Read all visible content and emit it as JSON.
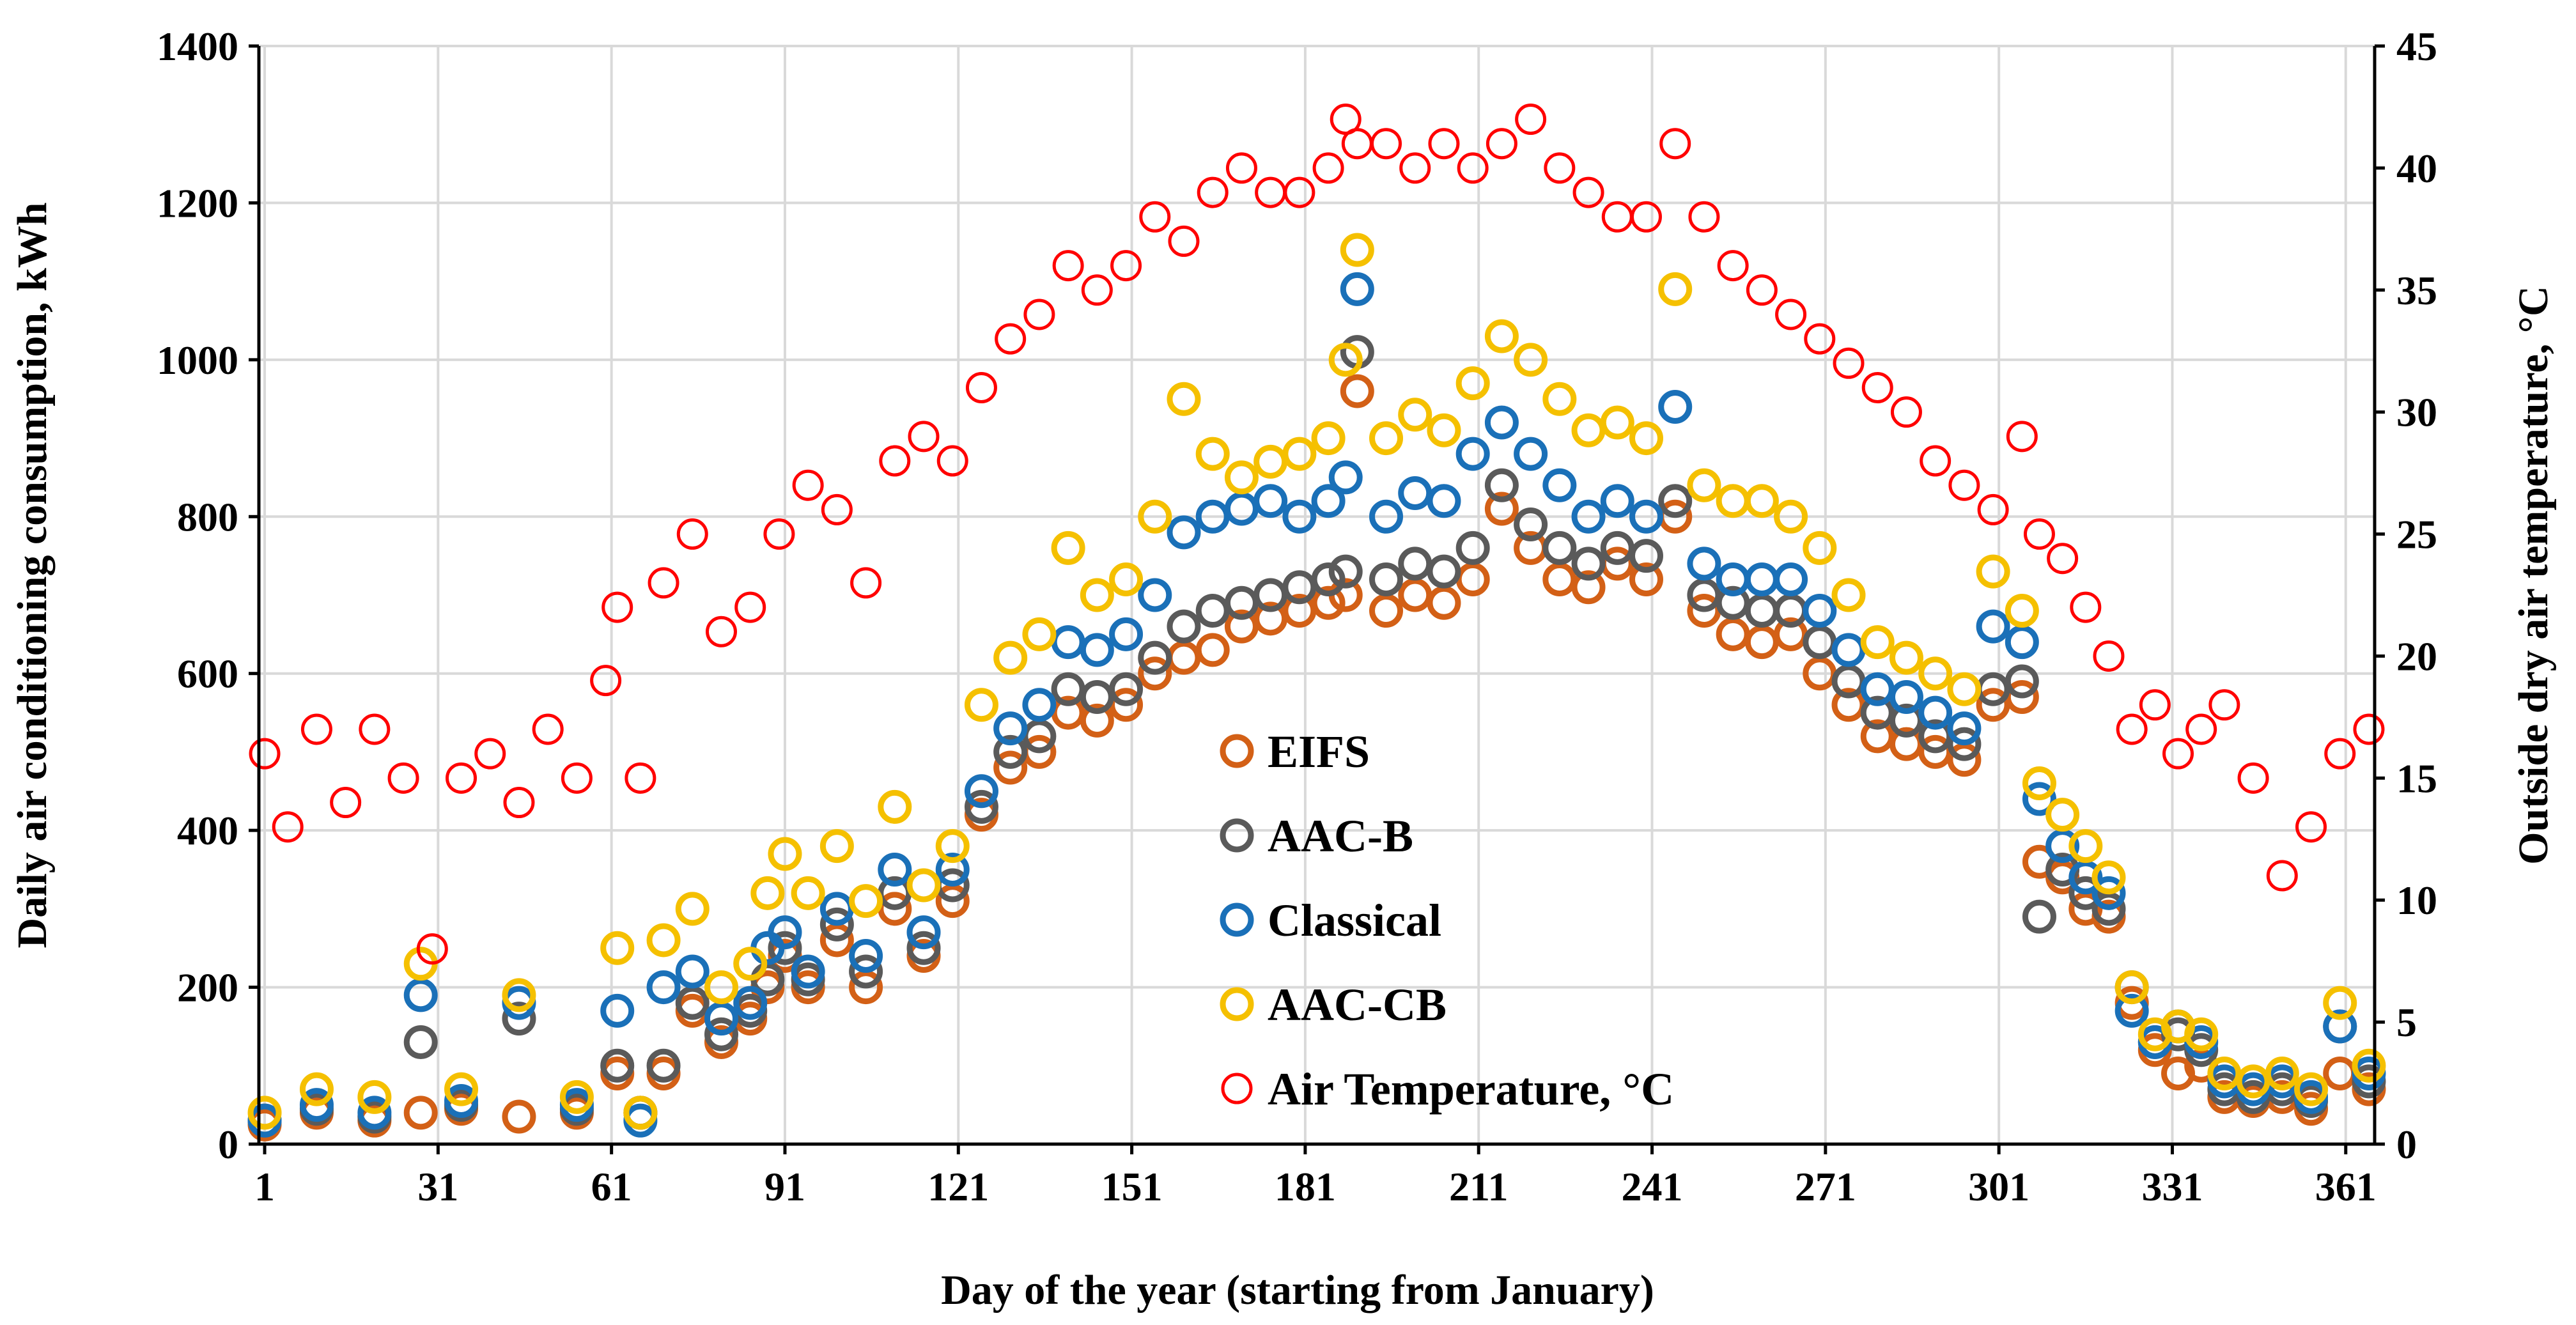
{
  "chart_data": {
    "type": "scatter",
    "title": "",
    "xlabel": "Day of the year (starting from January)",
    "ylabel": "Daily air conditioning consumption, kWh",
    "y2label": "Outside dry air temperature, °C",
    "xlim": [
      0,
      366
    ],
    "ylim": [
      0,
      1400
    ],
    "y2lim": [
      0,
      45
    ],
    "xticks": [
      1,
      31,
      61,
      91,
      121,
      151,
      181,
      211,
      241,
      271,
      301,
      331,
      361
    ],
    "yticks": [
      0,
      200,
      400,
      600,
      800,
      1000,
      1200,
      1400
    ],
    "y2ticks": [
      0,
      5,
      10,
      15,
      20,
      25,
      30,
      35,
      40,
      45
    ],
    "grid": true,
    "legend_position": "center",
    "marker": "open-circle",
    "colors": {
      "EIFS": "#d36016",
      "AAC-B": "#5a5a5a",
      "Classical": "#1a70b8",
      "AAC-CB": "#f5c000",
      "Air Temperature, °C": "#ff0000"
    },
    "series": [
      {
        "name": "EIFS",
        "axis": "left",
        "x": [
          1,
          10,
          20,
          28,
          35,
          45,
          55,
          62,
          66,
          70,
          75,
          80,
          85,
          88,
          91,
          95,
          100,
          105,
          110,
          115,
          120,
          125,
          130,
          135,
          140,
          145,
          150,
          155,
          160,
          165,
          170,
          175,
          180,
          185,
          188,
          190,
          195,
          200,
          205,
          210,
          215,
          220,
          225,
          230,
          235,
          240,
          245,
          250,
          255,
          260,
          265,
          270,
          275,
          280,
          285,
          290,
          295,
          300,
          305,
          308,
          312,
          316,
          320,
          324,
          328,
          332,
          336,
          340,
          345,
          350,
          355,
          360,
          365
        ],
        "values": [
          25,
          40,
          30,
          40,
          45,
          35,
          40,
          90,
          40,
          90,
          170,
          130,
          160,
          200,
          240,
          200,
          260,
          200,
          300,
          240,
          310,
          420,
          480,
          500,
          550,
          540,
          560,
          600,
          620,
          630,
          660,
          670,
          680,
          690,
          700,
          960,
          680,
          700,
          690,
          720,
          810,
          760,
          720,
          710,
          740,
          720,
          800,
          680,
          650,
          640,
          650,
          600,
          560,
          520,
          510,
          500,
          490,
          560,
          570,
          360,
          340,
          300,
          290,
          180,
          120,
          90,
          100,
          60,
          55,
          60,
          45,
          90,
          70
        ]
      },
      {
        "name": "AAC-B",
        "axis": "left",
        "x": [
          1,
          10,
          20,
          28,
          35,
          45,
          55,
          62,
          66,
          70,
          75,
          80,
          85,
          88,
          91,
          95,
          100,
          105,
          110,
          115,
          120,
          125,
          130,
          135,
          140,
          145,
          150,
          155,
          160,
          165,
          170,
          175,
          180,
          185,
          188,
          190,
          195,
          200,
          205,
          210,
          215,
          220,
          225,
          230,
          235,
          240,
          245,
          250,
          255,
          260,
          265,
          270,
          275,
          280,
          285,
          290,
          295,
          300,
          305,
          308,
          312,
          316,
          320,
          324,
          328,
          332,
          336,
          340,
          345,
          350,
          355,
          360,
          365
        ],
        "values": [
          30,
          45,
          35,
          130,
          50,
          160,
          45,
          100,
          40,
          100,
          180,
          140,
          170,
          210,
          250,
          210,
          280,
          220,
          320,
          250,
          330,
          430,
          500,
          520,
          580,
          570,
          580,
          620,
          660,
          680,
          690,
          700,
          710,
          720,
          730,
          1010,
          720,
          740,
          730,
          760,
          840,
          790,
          760,
          740,
          760,
          750,
          820,
          700,
          690,
          680,
          680,
          640,
          590,
          550,
          540,
          520,
          510,
          580,
          590,
          290,
          350,
          320,
          300,
          200,
          130,
          140,
          120,
          70,
          60,
          70,
          55,
          150,
          80
        ]
      },
      {
        "name": "Classical",
        "axis": "left",
        "x": [
          1,
          10,
          20,
          28,
          35,
          45,
          55,
          62,
          66,
          70,
          75,
          80,
          85,
          88,
          91,
          95,
          100,
          105,
          110,
          115,
          120,
          125,
          130,
          135,
          140,
          145,
          150,
          155,
          160,
          165,
          170,
          175,
          180,
          185,
          188,
          190,
          195,
          200,
          205,
          210,
          215,
          220,
          225,
          230,
          235,
          240,
          245,
          250,
          255,
          260,
          265,
          270,
          275,
          280,
          285,
          290,
          295,
          300,
          305,
          308,
          312,
          316,
          320,
          324,
          328,
          332,
          336,
          340,
          345,
          350,
          355,
          360,
          365
        ],
        "values": [
          30,
          50,
          40,
          190,
          55,
          180,
          50,
          170,
          30,
          200,
          220,
          160,
          180,
          250,
          270,
          220,
          300,
          240,
          350,
          270,
          350,
          450,
          530,
          560,
          640,
          630,
          650,
          700,
          780,
          800,
          810,
          820,
          800,
          820,
          850,
          1090,
          800,
          830,
          820,
          880,
          920,
          880,
          840,
          800,
          820,
          800,
          940,
          740,
          720,
          720,
          720,
          680,
          630,
          580,
          570,
          550,
          530,
          660,
          640,
          440,
          380,
          340,
          320,
          170,
          130,
          150,
          130,
          80,
          70,
          80,
          60,
          150,
          90
        ]
      },
      {
        "name": "AAC-CB",
        "axis": "left",
        "x": [
          1,
          10,
          20,
          28,
          35,
          45,
          55,
          62,
          66,
          70,
          75,
          80,
          85,
          88,
          91,
          95,
          100,
          105,
          110,
          115,
          120,
          125,
          130,
          135,
          140,
          145,
          150,
          155,
          160,
          165,
          170,
          175,
          180,
          185,
          188,
          190,
          195,
          200,
          205,
          210,
          215,
          220,
          225,
          230,
          235,
          240,
          245,
          250,
          255,
          260,
          265,
          270,
          275,
          280,
          285,
          290,
          295,
          300,
          305,
          308,
          312,
          316,
          320,
          324,
          328,
          332,
          336,
          340,
          345,
          350,
          355,
          360,
          365
        ],
        "values": [
          40,
          70,
          60,
          230,
          70,
          190,
          60,
          250,
          40,
          260,
          300,
          200,
          230,
          320,
          370,
          320,
          380,
          310,
          430,
          330,
          380,
          560,
          620,
          650,
          760,
          700,
          720,
          800,
          950,
          880,
          850,
          870,
          880,
          900,
          1000,
          1140,
          900,
          930,
          910,
          970,
          1030,
          1000,
          950,
          910,
          920,
          900,
          1090,
          840,
          820,
          820,
          800,
          760,
          700,
          640,
          620,
          600,
          580,
          730,
          680,
          460,
          420,
          380,
          340,
          200,
          140,
          150,
          140,
          90,
          80,
          90,
          70,
          180,
          100
        ]
      },
      {
        "name": "Air Temperature, °C",
        "axis": "right",
        "x": [
          1,
          5,
          10,
          15,
          20,
          25,
          30,
          35,
          40,
          45,
          50,
          55,
          60,
          62,
          66,
          70,
          75,
          80,
          85,
          90,
          95,
          100,
          105,
          110,
          115,
          120,
          125,
          130,
          135,
          140,
          145,
          150,
          155,
          160,
          165,
          170,
          175,
          180,
          185,
          188,
          190,
          195,
          200,
          205,
          210,
          215,
          220,
          225,
          230,
          235,
          240,
          245,
          250,
          255,
          260,
          265,
          270,
          275,
          280,
          285,
          290,
          295,
          300,
          305,
          308,
          312,
          316,
          320,
          324,
          328,
          332,
          336,
          340,
          345,
          350,
          355,
          360,
          365
        ],
        "values": [
          16,
          13,
          17,
          14,
          17,
          15,
          8,
          15,
          16,
          14,
          17,
          15,
          19,
          22,
          15,
          23,
          25,
          21,
          22,
          25,
          27,
          26,
          23,
          28,
          29,
          28,
          31,
          33,
          34,
          36,
          35,
          36,
          38,
          37,
          39,
          40,
          39,
          39,
          40,
          42,
          41,
          41,
          40,
          41,
          40,
          41,
          42,
          40,
          39,
          38,
          38,
          41,
          38,
          36,
          35,
          34,
          33,
          32,
          31,
          30,
          28,
          27,
          26,
          29,
          25,
          24,
          22,
          20,
          17,
          18,
          16,
          17,
          18,
          15,
          11,
          13,
          16,
          17
        ]
      }
    ]
  },
  "legend": {
    "items": [
      {
        "label": "EIFS",
        "color": "#d36016"
      },
      {
        "label": "AAC-B",
        "color": "#5a5a5a"
      },
      {
        "label": "Classical",
        "color": "#1a70b8"
      },
      {
        "label": "AAC-CB",
        "color": "#f5c000"
      },
      {
        "label": "Air Temperature, °C",
        "color": "#ff0000"
      }
    ]
  },
  "axes": {
    "x_title": "Day of the year (starting from January)",
    "y_left_title": "Daily air conditioning consumption, kWh",
    "y_right_title": "Outside dry air temperature, °C"
  }
}
